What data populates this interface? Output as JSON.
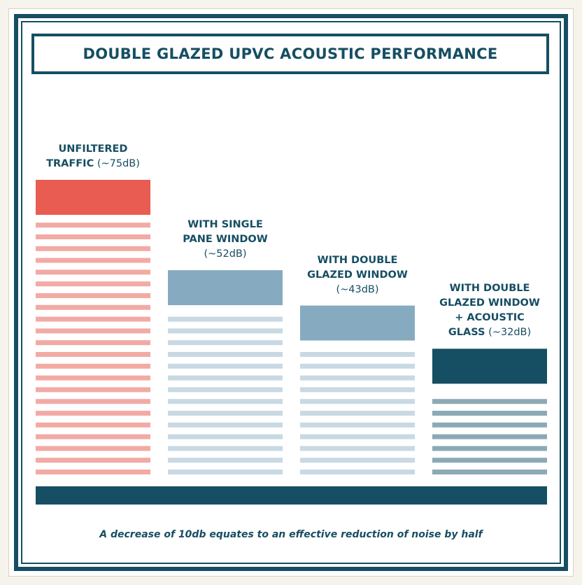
{
  "title": "DOUBLE GLAZED UPVC ACOUSTIC PERFORMANCE",
  "footnote": "A decrease of 10db equates to an effective reduction of noise by half",
  "colors": {
    "navy": "#164e63",
    "coral": "#e95c52",
    "coral_light": "#f2aaa5",
    "steel": "#86abc0",
    "steel_light": "#c8d9e3",
    "navy_light": "#8ca9b6"
  },
  "chart_data": {
    "type": "bar",
    "title": "DOUBLE GLAZED UPVC ACOUSTIC PERFORMANCE",
    "unit": "dB",
    "categories": [
      "UNFILTERED TRAFFIC",
      "WITH SINGLE PANE WINDOW",
      "WITH DOUBLE GLAZED WINDOW",
      "WITH DOUBLE GLAZED WINDOW + ACOUSTIC GLASS"
    ],
    "values": [
      75,
      52,
      43,
      32
    ],
    "bars": [
      {
        "bold_lines": [
          "UNFILTERED",
          "TRAFFIC"
        ],
        "value_text": "(~75dB)",
        "value": 75,
        "value_inline": true
      },
      {
        "bold_lines": [
          "WITH SINGLE",
          "PANE WINDOW"
        ],
        "value_text": "(~52dB)",
        "value": 52,
        "value_inline": false
      },
      {
        "bold_lines": [
          "WITH DOUBLE",
          "GLAZED WINDOW"
        ],
        "value_text": "(~43dB)",
        "value": 43,
        "value_inline": false
      },
      {
        "bold_lines": [
          "WITH DOUBLE",
          "GLAZED WINDOW",
          "+ ACOUSTIC",
          "GLASS"
        ],
        "value_text": "(~32dB)",
        "value": 32,
        "value_inline": true
      }
    ],
    "ylim": [
      0,
      75
    ],
    "grid": false,
    "legend": "none"
  }
}
